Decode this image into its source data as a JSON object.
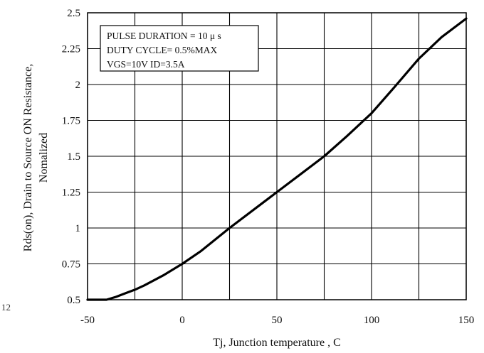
{
  "chart_data": {
    "type": "line",
    "xlabel": "Tj, Junction temperature , C",
    "ylabel_line1": "Rds(on), Drain to Source ON  Resistance,",
    "ylabel_line2": "Nomalized",
    "xlim": [
      -50,
      150
    ],
    "ylim": [
      0.5,
      2.5
    ],
    "x_ticks": [
      "-50",
      "0",
      "50",
      "100",
      "150"
    ],
    "y_ticks": [
      "0.5",
      "0.75",
      "1",
      "1.25",
      "1.5",
      "1.75",
      "2",
      "2.25",
      "2.5"
    ],
    "x_gridlines": [
      -50,
      -25,
      0,
      25,
      50,
      75,
      100,
      125,
      150
    ],
    "y_gridlines": [
      0.5,
      0.75,
      1.0,
      1.25,
      1.5,
      1.75,
      2.0,
      2.25,
      2.5
    ],
    "grid": true,
    "annotation": [
      "PULSE   DURATION = 10 μ s",
      "DUTY   CYCLE= 0.5%MAX",
      "VGS=10V   ID=3.5A"
    ],
    "margin_label": "12",
    "series": [
      {
        "x": [
          -50,
          -40,
          -35,
          -30,
          -25,
          -20,
          -10,
          0,
          10,
          25,
          40,
          50,
          62,
          75,
          87,
          100,
          112,
          125,
          137,
          150
        ],
        "y": [
          0.5,
          0.5,
          0.52,
          0.545,
          0.57,
          0.6,
          0.67,
          0.75,
          0.84,
          1.0,
          1.15,
          1.25,
          1.37,
          1.5,
          1.64,
          1.8,
          1.98,
          2.18,
          2.33,
          2.46
        ]
      }
    ]
  }
}
